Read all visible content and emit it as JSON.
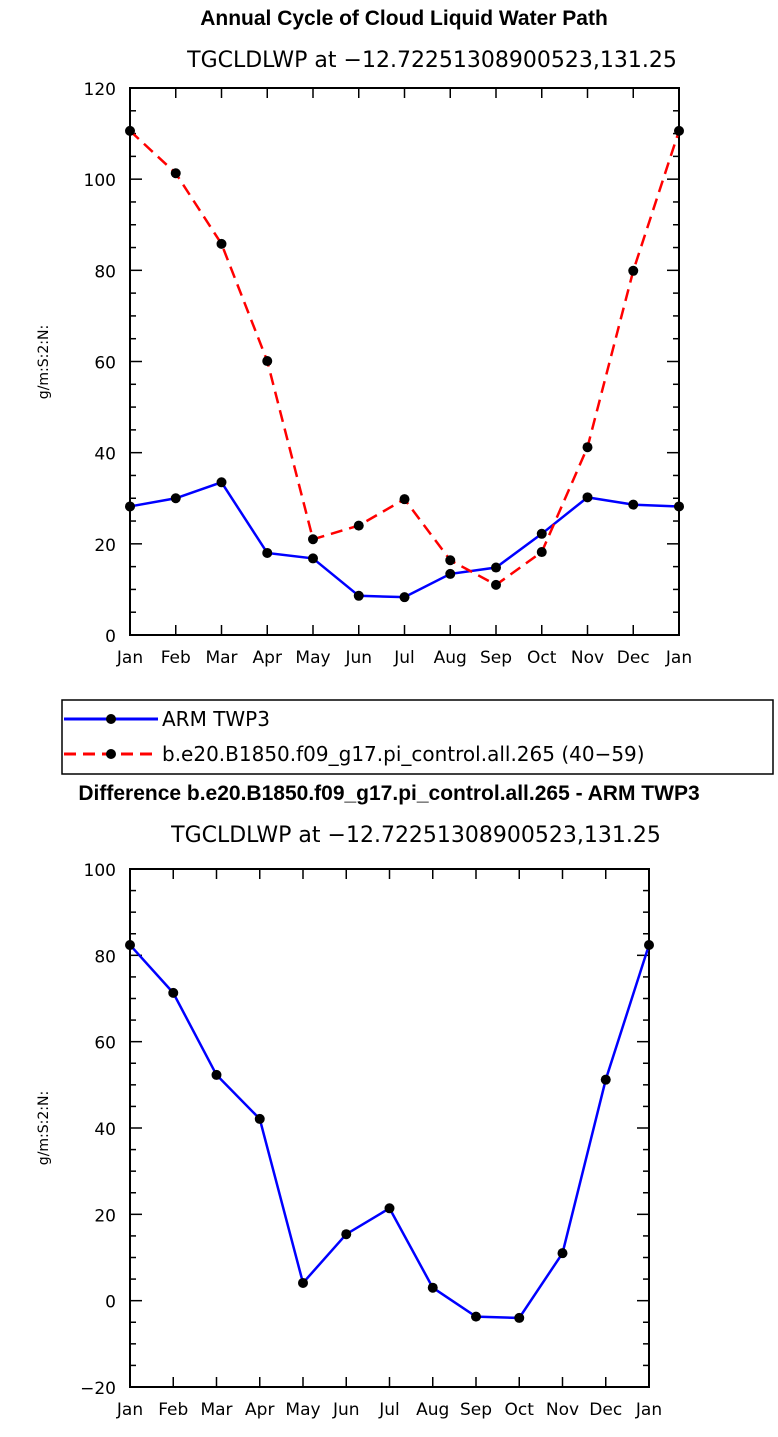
{
  "chart_data": [
    {
      "type": "line",
      "title": "Annual Cycle of Cloud Liquid Water Path",
      "subtitle": "TGCLDLWP at −12.72251308900523,131.25",
      "ylabel": "g/m:S:2:N:",
      "xlabel": "",
      "categories": [
        "Jan",
        "Feb",
        "Mar",
        "Apr",
        "May",
        "Jun",
        "Jul",
        "Aug",
        "Sep",
        "Oct",
        "Nov",
        "Dec",
        "Jan"
      ],
      "ylim": [
        0,
        120
      ],
      "yticks": [
        "0",
        "20",
        "40",
        "60",
        "80",
        "100",
        "120"
      ],
      "series": [
        {
          "name": "ARM TWP3",
          "color": "#0000ff",
          "dash": false,
          "values": [
            28.2,
            30.0,
            33.5,
            18.0,
            16.8,
            8.6,
            8.3,
            13.4,
            14.8,
            22.2,
            30.2,
            28.6,
            28.2
          ]
        },
        {
          "name": "b.e20.B1850.f09_g17.pi_control.all.265 (40−59)",
          "color": "#ff0000",
          "dash": true,
          "values": [
            110.6,
            101.3,
            85.8,
            60.1,
            21.0,
            24.0,
            29.8,
            16.4,
            11.0,
            18.2,
            41.2,
            79.9,
            110.6
          ]
        }
      ],
      "legend": "bottom"
    },
    {
      "type": "line",
      "title": "Difference b.e20.B1850.f09_g17.pi_control.all.265 - ARM TWP3",
      "subtitle": "TGCLDLWP at −12.72251308900523,131.25",
      "ylabel": "g/m:S:2:N:",
      "xlabel": "",
      "categories": [
        "Jan",
        "Feb",
        "Mar",
        "Apr",
        "May",
        "Jun",
        "Jul",
        "Aug",
        "Sep",
        "Oct",
        "Nov",
        "Dec",
        "Jan"
      ],
      "ylim": [
        -20,
        100
      ],
      "yticks": [
        "−20",
        "0",
        "20",
        "40",
        "60",
        "80",
        "100"
      ],
      "series": [
        {
          "color": "#0000ff",
          "dash": false,
          "values": [
            82.4,
            71.3,
            52.3,
            42.1,
            4.1,
            15.4,
            21.4,
            3.0,
            -3.7,
            -4.0,
            11.0,
            51.2,
            82.4
          ]
        }
      ]
    }
  ]
}
